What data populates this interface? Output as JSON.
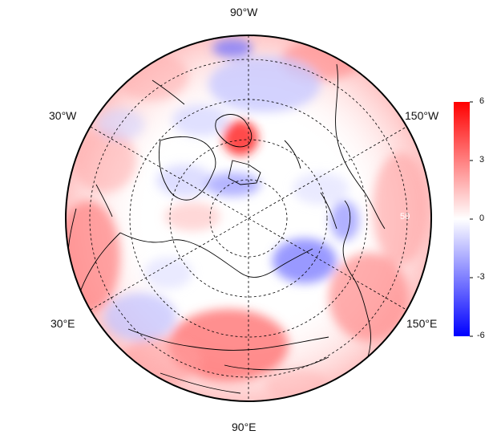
{
  "map": {
    "projection": "north-polar-stereographic",
    "longitude_labels": {
      "top": "90°W",
      "upper_left": "30°W",
      "upper_right": "150°W",
      "lower_left": "30°E",
      "lower_right": "150°E",
      "bottom": "90°E"
    },
    "latitude_label": "50"
  },
  "colorbar": {
    "ticks": [
      "6",
      "3",
      "0",
      "-3",
      "-6"
    ],
    "min": -6,
    "max": 6,
    "colors": {
      "low": "#0000ff",
      "mid": "#ffffff",
      "high": "#ff0000"
    }
  }
}
